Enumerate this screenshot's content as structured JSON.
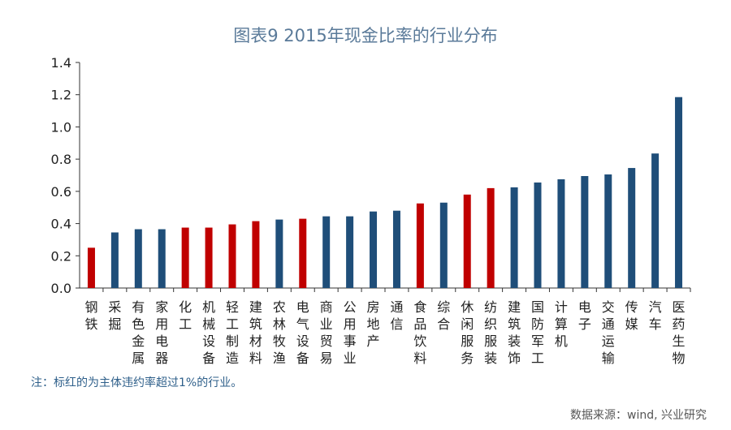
{
  "chart_data": {
    "type": "bar",
    "title": "图表9  2015年现金比率的行业分布",
    "xlabel": "",
    "ylabel": "",
    "ylim": [
      0,
      1.4
    ],
    "yticks": [
      "0.0",
      "0.2",
      "0.4",
      "0.6",
      "0.8",
      "1.0",
      "1.2",
      "1.4"
    ],
    "categories": [
      "钢铁",
      "采掘",
      "有色金属",
      "家用电器",
      "化工",
      "机械设备",
      "轻工制造",
      "建筑材料",
      "农林牧渔",
      "电气设备",
      "商业贸易",
      "公用事业",
      "房地产",
      "通信",
      "食品饮料",
      "综合",
      "休闲服务",
      "纺织服装",
      "建筑装饰",
      "国防军工",
      "计算机",
      "电子",
      "交通运输",
      "传媒",
      "汽车",
      "医药生物"
    ],
    "values": [
      0.25,
      0.345,
      0.365,
      0.365,
      0.375,
      0.375,
      0.395,
      0.415,
      0.425,
      0.43,
      0.445,
      0.445,
      0.475,
      0.48,
      0.525,
      0.53,
      0.58,
      0.62,
      0.625,
      0.655,
      0.675,
      0.695,
      0.705,
      0.745,
      0.835,
      1.185
    ],
    "highlighted": [
      true,
      false,
      false,
      false,
      true,
      true,
      true,
      true,
      false,
      true,
      false,
      false,
      false,
      false,
      true,
      false,
      true,
      true,
      false,
      false,
      false,
      false,
      false,
      false,
      false,
      false
    ],
    "colors": {
      "normal": "#1f4e79",
      "highlight": "#c00000"
    },
    "grid": false,
    "legend": "none"
  },
  "note": "注：标红的为主体违约率超过1%的行业。",
  "source": "数据来源：wind, 兴业研究"
}
